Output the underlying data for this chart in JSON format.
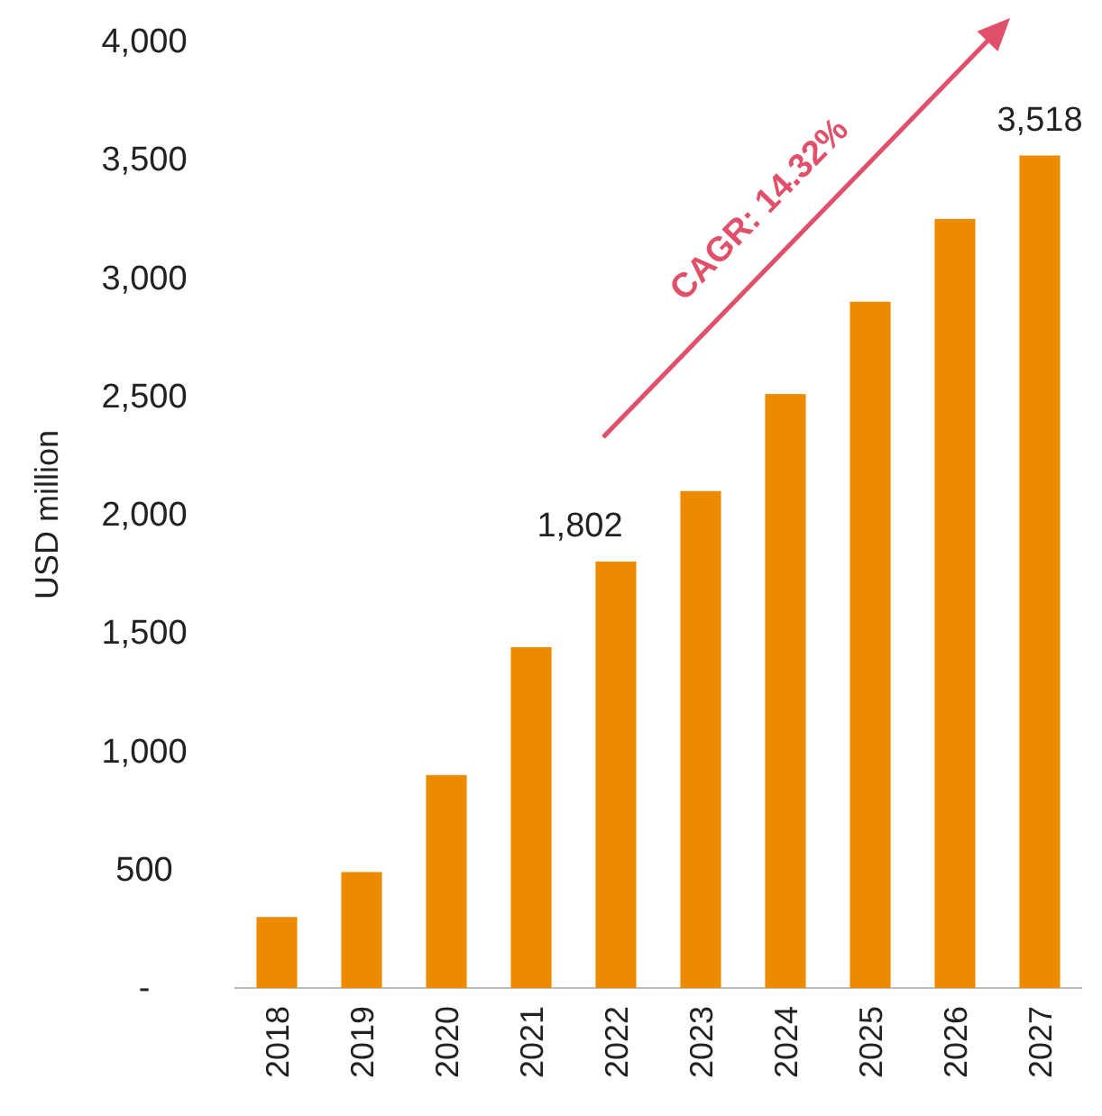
{
  "chart_data": {
    "type": "bar",
    "ylabel": "USD million",
    "categories": [
      "2018",
      "2019",
      "2020",
      "2021",
      "2022",
      "2023",
      "2024",
      "2025",
      "2026",
      "2027"
    ],
    "values": [
      300,
      490,
      900,
      1440,
      1802,
      2100,
      2510,
      2900,
      3250,
      3518
    ],
    "value_labels": [
      null,
      null,
      null,
      null,
      "1,802",
      null,
      null,
      null,
      null,
      "3,518"
    ],
    "color": "#ed8b00",
    "ylim": [
      0,
      4000
    ],
    "yticks": [
      {
        "value": 0,
        "label": "-"
      },
      {
        "value": 500,
        "label": "500"
      },
      {
        "value": 1000,
        "label": "1,000"
      },
      {
        "value": 1500,
        "label": "1,500"
      },
      {
        "value": 2000,
        "label": "2,000"
      },
      {
        "value": 2500,
        "label": "2,500"
      },
      {
        "value": 3000,
        "label": "3,000"
      },
      {
        "value": 3500,
        "label": "3,500"
      },
      {
        "value": 4000,
        "label": "4,000"
      }
    ],
    "grid": false,
    "annotations": [
      "CAGR: 14.32%"
    ]
  }
}
